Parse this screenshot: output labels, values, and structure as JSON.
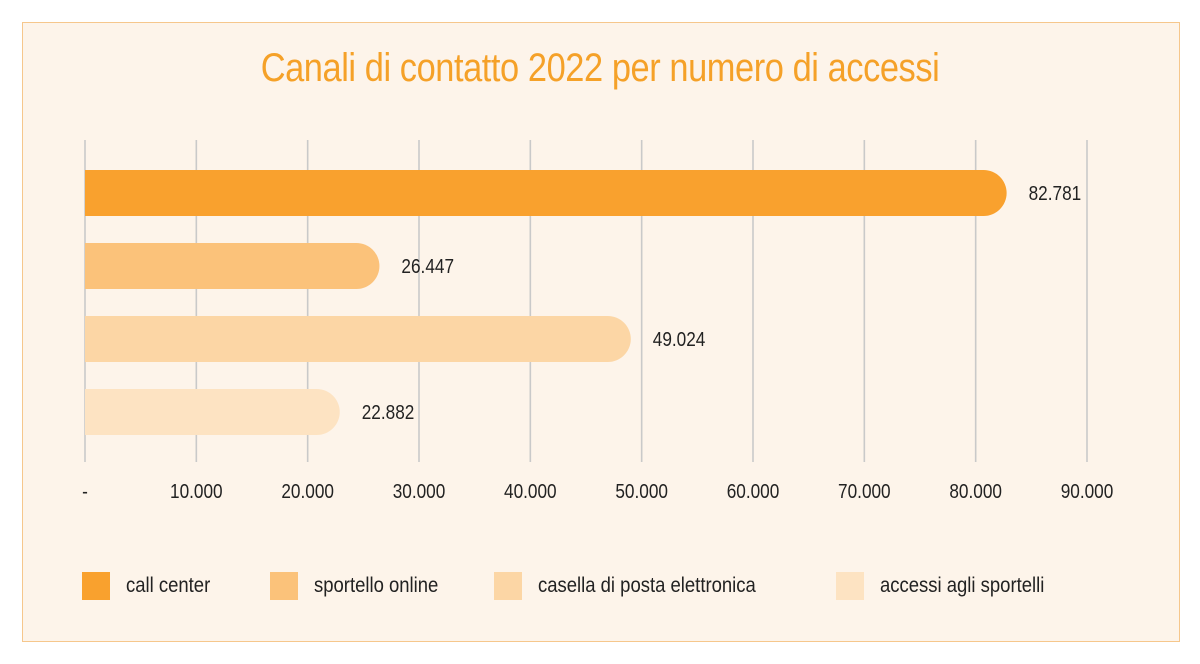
{
  "chart_data": {
    "type": "bar",
    "orientation": "horizontal",
    "title": "Canali di contatto 2022 per numero di accessi",
    "categories": [
      "call center",
      "sportello online",
      "casella di posta elettronica",
      "accessi agli sportelli"
    ],
    "values": [
      82781,
      26447,
      49024,
      22882
    ],
    "value_labels": [
      "82.781",
      "26.447",
      "49.024",
      "22.882"
    ],
    "colors": [
      "#f9a12e",
      "#fbc27a",
      "#fcd6a5",
      "#fde3c2"
    ],
    "xlim": [
      0,
      90000
    ],
    "x_ticks": [
      0,
      10000,
      20000,
      30000,
      40000,
      50000,
      60000,
      70000,
      80000,
      90000
    ],
    "x_tick_labels": [
      "-",
      "10.000",
      "20.000",
      "30.000",
      "40.000",
      "50.000",
      "60.000",
      "70.000",
      "80.000",
      "90.000"
    ],
    "grid": "vertical",
    "legend_position": "bottom"
  },
  "colors": {
    "title": "#f5a128",
    "panel_bg": "#fdf4ea",
    "panel_border": "#f6c78c",
    "grid": "#c9c9c9"
  }
}
